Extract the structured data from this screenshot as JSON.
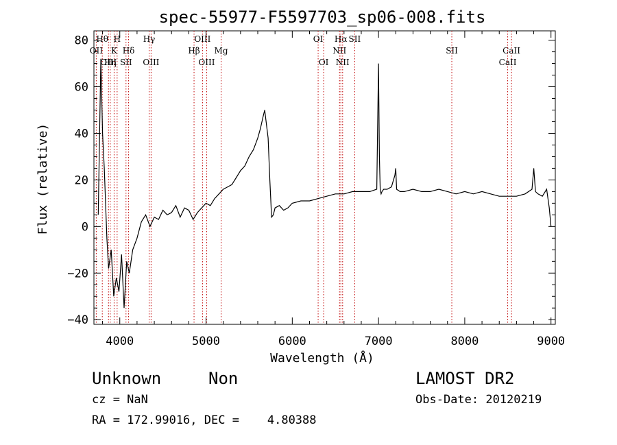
{
  "chart_data": {
    "type": "line",
    "title": "spec-55977-F5597703_sp06-008.fits",
    "xlabel": "Wavelength (Å)",
    "ylabel": "Flux (relative)",
    "xlim": [
      3700,
      9050
    ],
    "ylim": [
      -42,
      84
    ],
    "xticks": [
      4000,
      5000,
      6000,
      7000,
      8000,
      9000
    ],
    "yticks": [
      -40,
      -20,
      0,
      20,
      40,
      60,
      80
    ],
    "grid": false,
    "spectrum": {
      "name": "flux",
      "x": [
        3750,
        3780,
        3800,
        3820,
        3850,
        3870,
        3900,
        3930,
        3960,
        3990,
        4020,
        4050,
        4080,
        4110,
        4150,
        4200,
        4250,
        4300,
        4350,
        4400,
        4450,
        4500,
        4550,
        4600,
        4650,
        4700,
        4750,
        4800,
        4850,
        4900,
        4950,
        5000,
        5050,
        5100,
        5150,
        5200,
        5250,
        5300,
        5350,
        5400,
        5450,
        5500,
        5550,
        5600,
        5630,
        5660,
        5680,
        5700,
        5720,
        5740,
        5750,
        5760,
        5780,
        5800,
        5850,
        5900,
        5950,
        6000,
        6100,
        6200,
        6300,
        6400,
        6500,
        6600,
        6700,
        6800,
        6900,
        6980,
        7000,
        7010,
        7020,
        7030,
        7040,
        7060,
        7100,
        7150,
        7190,
        7200,
        7210,
        7250,
        7300,
        7400,
        7500,
        7600,
        7700,
        7800,
        7900,
        8000,
        8100,
        8200,
        8300,
        8400,
        8500,
        8600,
        8700,
        8780,
        8800,
        8820,
        8850,
        8900,
        8950,
        8980,
        9000
      ],
      "y": [
        5,
        72,
        40,
        25,
        -5,
        -18,
        -10,
        -30,
        -22,
        -28,
        -12,
        -35,
        -15,
        -20,
        -10,
        -5,
        2,
        5,
        0,
        4,
        3,
        7,
        5,
        6,
        9,
        4,
        8,
        7,
        3,
        6,
        8,
        10,
        9,
        12,
        14,
        16,
        17,
        18,
        21,
        24,
        26,
        30,
        33,
        38,
        42,
        47,
        50,
        44,
        38,
        20,
        12,
        4,
        5,
        8,
        9,
        7,
        8,
        10,
        11,
        11,
        12,
        13,
        14,
        14,
        15,
        15,
        15,
        16,
        70,
        30,
        16,
        14,
        15,
        16,
        16,
        17,
        22,
        25,
        16,
        15,
        15,
        16,
        15,
        15,
        16,
        15,
        14,
        15,
        14,
        15,
        14,
        13,
        13,
        13,
        14,
        16,
        25,
        15,
        14,
        13,
        16,
        8,
        0
      ]
    },
    "spectral_lines": [
      {
        "label": "OII",
        "wavelength": 3727,
        "row": 2
      },
      {
        "label": "Hθ",
        "wavelength": 3797,
        "row": 0
      },
      {
        "label": "OIII",
        "wavelength": 3869,
        "row": 3
      },
      {
        "label": "Hη",
        "wavelength": 3889,
        "row": 3
      },
      {
        "label": "H",
        "wavelength": 3969,
        "row": 0
      },
      {
        "label": "K",
        "wavelength": 3934,
        "row": 1
      },
      {
        "label": "Hδ",
        "wavelength": 4102,
        "row": 1
      },
      {
        "label": "SII",
        "wavelength": 4072,
        "row": 3
      },
      {
        "label": "Hγ",
        "wavelength": 4340,
        "row": 0
      },
      {
        "label": "OIII",
        "wavelength": 4363,
        "row": 3
      },
      {
        "label": "OIII",
        "wavelength": 4959,
        "row": 0
      },
      {
        "label": "Hβ",
        "wavelength": 4861,
        "row": 2
      },
      {
        "label": "OIII",
        "wavelength": 5007,
        "row": 3
      },
      {
        "label": "Mg",
        "wavelength": 5175,
        "row": 2
      },
      {
        "label": "OI",
        "wavelength": 6300,
        "row": 0
      },
      {
        "label": "OI",
        "wavelength": 6364,
        "row": 3
      },
      {
        "label": "Hα",
        "wavelength": 6563,
        "row": 0
      },
      {
        "label": "NII",
        "wavelength": 6548,
        "row": 1
      },
      {
        "label": "NII",
        "wavelength": 6584,
        "row": 3
      },
      {
        "label": "SII",
        "wavelength": 6724,
        "row": 0
      },
      {
        "label": "SII",
        "wavelength": 7850,
        "row": 1
      },
      {
        "label": "CaII",
        "wavelength": 8542,
        "row": 1
      },
      {
        "label": "CaII",
        "wavelength": 8498,
        "row": 3
      }
    ]
  },
  "info": {
    "object_class": "Unknown",
    "subclass": "Non",
    "survey": "LAMOST DR2",
    "redshift": "cz = NaN",
    "obs_date": "Obs-Date: 20120219",
    "coords": "RA = 172.99016, DEC =    4.80388"
  },
  "colors": {
    "line": "#000000",
    "marker_lines": "#c00000",
    "axes": "#000000"
  }
}
